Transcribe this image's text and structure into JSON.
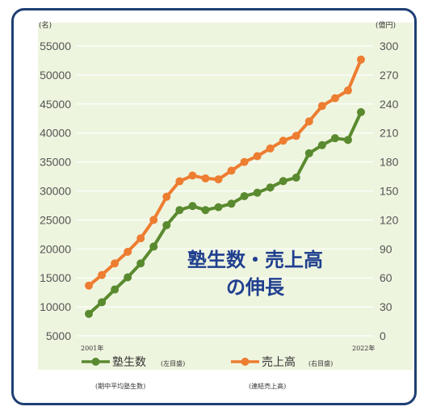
{
  "chart_data": {
    "type": "line",
    "title_lines": [
      "塾生数・売上高",
      "の伸長"
    ],
    "left_axis": {
      "unit": "(名)",
      "ticks": [
        5000,
        10000,
        15000,
        20000,
        25000,
        30000,
        35000,
        40000,
        45000,
        50000,
        55000
      ],
      "range": [
        5000,
        55000
      ]
    },
    "right_axis": {
      "unit": "(億円)",
      "ticks": [
        0,
        30,
        60,
        90,
        120,
        150,
        180,
        210,
        240,
        270,
        300
      ],
      "range": [
        0,
        300
      ]
    },
    "x": [
      2001,
      2002,
      2003,
      2004,
      2005,
      2006,
      2007,
      2008,
      2009,
      2010,
      2011,
      2012,
      2013,
      2014,
      2015,
      2016,
      2017,
      2018,
      2019,
      2020,
      2021,
      2022
    ],
    "x_start_label": "2001年",
    "x_end_label": "2022年",
    "series": [
      {
        "name": "塾生数",
        "name_note": "(左目盛)",
        "sub_label": "(期中平均塾生数)",
        "axis": "left",
        "color": "#5a8a2f",
        "values": [
          8800,
          10800,
          13000,
          15100,
          17500,
          20400,
          24100,
          26700,
          27400,
          26700,
          27200,
          27800,
          29100,
          29700,
          30600,
          31700,
          32300,
          36500,
          37900,
          39100,
          38800,
          43600
        ]
      },
      {
        "name": "売上高",
        "name_note": "(右目盛)",
        "sub_label": "(連結売上高)",
        "axis": "right",
        "color": "#ed7d31",
        "values": [
          52,
          63,
          75,
          87,
          101,
          120,
          144,
          160,
          166,
          163,
          162,
          171,
          180,
          186,
          194,
          202,
          207,
          222,
          238,
          246,
          254,
          286
        ]
      }
    ]
  }
}
